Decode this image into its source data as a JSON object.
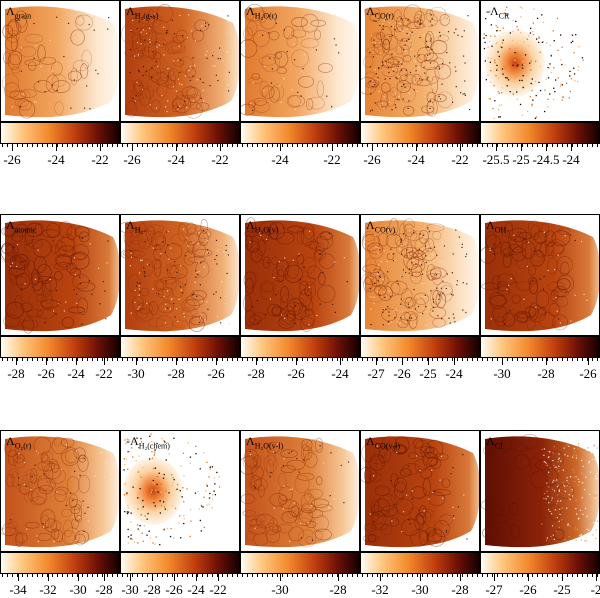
{
  "rows": [
    {
      "panels": [
        {
          "label": "Λ_grain",
          "main": "Λ",
          "sub": "grain",
          "style": "pale"
        },
        {
          "label": "Λ_H2(g-s)",
          "main": "Λ",
          "sub": "H₂(g-s)",
          "style": "dense"
        },
        {
          "label": "Λ_H2O(r)",
          "main": "Λ",
          "sub": "H₂O(r)",
          "style": "pale"
        },
        {
          "label": "Λ_CO(r)",
          "main": "Λ",
          "sub": "CO(r)",
          "style": "speckle"
        },
        {
          "label": "-Λ_CR",
          "main": "-Λ",
          "sub": "CR",
          "style": "blob"
        }
      ],
      "colorbars": [
        {
          "ticks": [
            "-26",
            "-24",
            "-22"
          ]
        },
        {
          "ticks": [
            "-26",
            "-24",
            "-22"
          ]
        },
        {
          "ticks": [
            "-24",
            "-22"
          ]
        },
        {
          "ticks": [
            "-26",
            "-24",
            "-22"
          ]
        },
        {
          "ticks": [
            "-25.5",
            "-25",
            "-24.5",
            "-24"
          ]
        }
      ]
    },
    {
      "panels": [
        {
          "label": "Λ_atomic",
          "main": "Λ",
          "sub": "atomic",
          "style": "dark"
        },
        {
          "label": "Λ_H2",
          "main": "Λ",
          "sub": "H₂",
          "style": "dense"
        },
        {
          "label": "Λ_H2O(v)",
          "main": "Λ",
          "sub": "H₂O(v)",
          "style": "dark"
        },
        {
          "label": "Λ_CO(v)",
          "main": "Λ",
          "sub": "CO(v)",
          "style": "speckle"
        },
        {
          "label": "Λ_OH",
          "main": "Λ",
          "sub": "OH",
          "style": "dark"
        }
      ],
      "colorbars": [
        {
          "ticks": [
            "-28",
            "-26",
            "-24",
            "-22"
          ]
        },
        {
          "ticks": [
            "-30",
            "-28",
            "-26"
          ]
        },
        {
          "ticks": [
            "-28",
            "-26",
            "-24"
          ]
        },
        {
          "ticks": [
            "-27",
            "-26",
            "-25",
            "-24"
          ]
        },
        {
          "ticks": [
            "-30",
            "-28",
            "-26"
          ]
        }
      ]
    },
    {
      "panels": [
        {
          "label": "Λ_O2(r)",
          "main": "Λ",
          "sub": "O₂(r)",
          "style": "medium"
        },
        {
          "label": "-Λ_H2(chem)",
          "main": "-Λ",
          "sub": "H₂(chem)",
          "style": "blob"
        },
        {
          "label": "Λ_H2O(v-l)",
          "main": "Λ",
          "sub": "H₂O(v-l)",
          "style": "medium"
        },
        {
          "label": "Λ_CO(v-l)",
          "main": "Λ",
          "sub": "CO(v-l)",
          "style": "dark"
        },
        {
          "label": "Λ_CI",
          "main": "Λ",
          "sub": "CI",
          "style": "gradient"
        }
      ],
      "colorbars": [
        {
          "ticks": [
            "-34",
            "-32",
            "-30",
            "-28"
          ]
        },
        {
          "ticks": [
            "-30",
            "-28",
            "-26",
            "-24",
            "-22"
          ]
        },
        {
          "ticks": [
            "-30",
            "-28"
          ]
        },
        {
          "ticks": [
            "-32",
            "-30",
            "-28"
          ]
        },
        {
          "ticks": [
            "-27",
            "-26",
            "-25",
            "-2"
          ]
        }
      ]
    }
  ]
}
